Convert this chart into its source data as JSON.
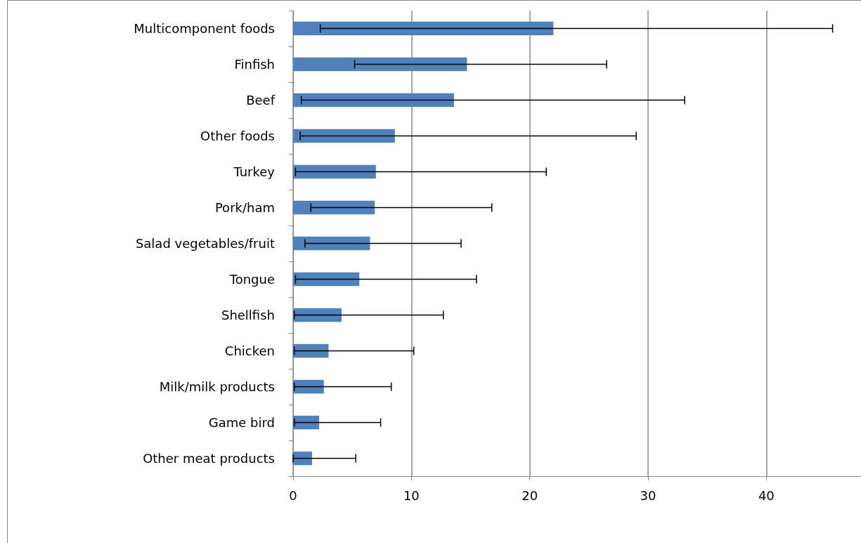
{
  "chart_data": {
    "type": "bar",
    "orientation": "horizontal",
    "categories": [
      "Multicomponent foods",
      "Finfish",
      "Beef",
      "Other foods",
      "Turkey",
      "Pork/ham",
      "Salad vegetables/fruit",
      "Tongue",
      "Shellfish",
      "Chicken",
      "Milk/milk products",
      "Game bird",
      "Other meat products"
    ],
    "values": [
      22.0,
      14.7,
      13.6,
      8.6,
      7.0,
      6.9,
      6.5,
      5.6,
      4.1,
      3.0,
      2.6,
      2.2,
      1.6
    ],
    "errors": [
      [
        2.3,
        45.6
      ],
      [
        5.2,
        26.5
      ],
      [
        0.7,
        33.1
      ],
      [
        0.6,
        29.0
      ],
      [
        0.2,
        21.4
      ],
      [
        1.5,
        16.8
      ],
      [
        1.0,
        14.2
      ],
      [
        0.2,
        15.5
      ],
      [
        0.1,
        12.7
      ],
      [
        0.1,
        10.2
      ],
      [
        0.1,
        8.3
      ],
      [
        0.1,
        7.4
      ],
      [
        0.0,
        5.3
      ]
    ],
    "color": "#4f81bd",
    "xlim": [
      0,
      48
    ],
    "xticks": [
      0,
      10,
      20,
      30,
      40
    ],
    "grid": "x"
  }
}
